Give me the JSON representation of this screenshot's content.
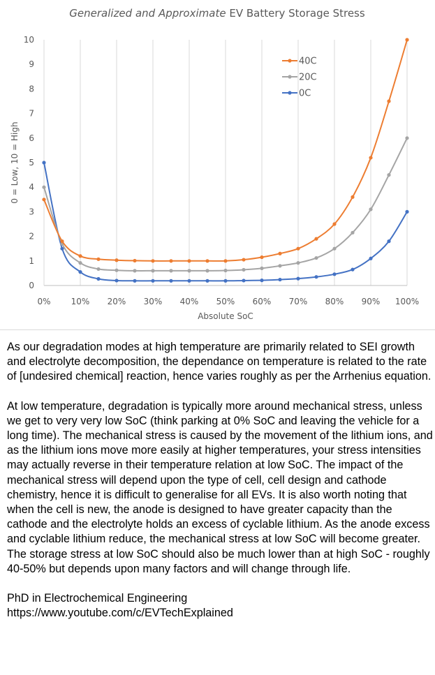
{
  "chart_data": {
    "type": "line",
    "title_italic": "Generalized and Approximate",
    "title_rest": "EV Battery Storage Stress",
    "xlabel": "Absolute SoC",
    "ylabel": "0 = Low, 10 = High",
    "x": [
      0,
      5,
      10,
      15,
      20,
      25,
      30,
      35,
      40,
      45,
      50,
      55,
      60,
      65,
      70,
      75,
      80,
      85,
      90,
      95,
      100
    ],
    "x_tick_labels": [
      "0%",
      "10%",
      "20%",
      "30%",
      "40%",
      "50%",
      "60%",
      "70%",
      "80%",
      "90%",
      "100%"
    ],
    "y_tick_labels": [
      "0",
      "1",
      "2",
      "3",
      "4",
      "5",
      "6",
      "7",
      "8",
      "9",
      "10"
    ],
    "xlim": [
      0,
      100
    ],
    "ylim": [
      0,
      10
    ],
    "grid": "vertical",
    "legend": "top-right",
    "series": [
      {
        "name": "40C",
        "color": "#ED7D31",
        "values": [
          3.5,
          1.8,
          1.2,
          1.07,
          1.03,
          1.01,
          1.0,
          1.0,
          1.0,
          1.0,
          1.0,
          1.05,
          1.15,
          1.3,
          1.5,
          1.9,
          2.5,
          3.6,
          5.2,
          7.5,
          10.0
        ]
      },
      {
        "name": "20C",
        "color": "#A5A5A5",
        "values": [
          4.0,
          1.7,
          0.92,
          0.67,
          0.62,
          0.6,
          0.6,
          0.6,
          0.6,
          0.6,
          0.61,
          0.64,
          0.7,
          0.8,
          0.92,
          1.12,
          1.5,
          2.15,
          3.1,
          4.5,
          6.0
        ]
      },
      {
        "name": "0C",
        "color": "#4472C4",
        "values": [
          5.0,
          1.5,
          0.55,
          0.27,
          0.2,
          0.19,
          0.19,
          0.19,
          0.19,
          0.19,
          0.19,
          0.2,
          0.21,
          0.24,
          0.28,
          0.35,
          0.46,
          0.65,
          1.1,
          1.8,
          3.0
        ]
      }
    ]
  },
  "text": {
    "paragraphs": [
      "As our degradation modes at high temperature are primarily related to SEI growth and electrolyte decomposition, the dependance on temperature is related to the rate of [undesired chemical] reaction, hence varies roughly as per the Arrhenius equation.",
      "At low temperature, degradation is typically more around mechanical stress, unless we get to very very low SoC (think parking at 0% SoC and leaving the vehicle for a long time). The mechanical stress is caused by the movement of the lithium ions, and as the lithium ions move more easily at higher temperatures, your stress intensities may actually reverse in their temperature relation at low SoC. The impact of the mechanical stress will depend upon the type of cell, cell design and cathode chemistry, hence it is difficult to generalise for all EVs. It is also worth noting that when the cell is new, the anode is designed to have greater capacity than the cathode and the electrolyte holds an excess of cyclable lithium. As the anode excess and cyclable lithium reduce, the mechanical stress at low SoC will become greater. The storage stress at low SoC should also be much lower than at high SoC - roughly 40-50% but depends upon many factors and will change through life."
    ],
    "signature": "PhD in Electrochemical Engineering",
    "link": "https://www.youtube.com/c/EVTechExplained"
  }
}
